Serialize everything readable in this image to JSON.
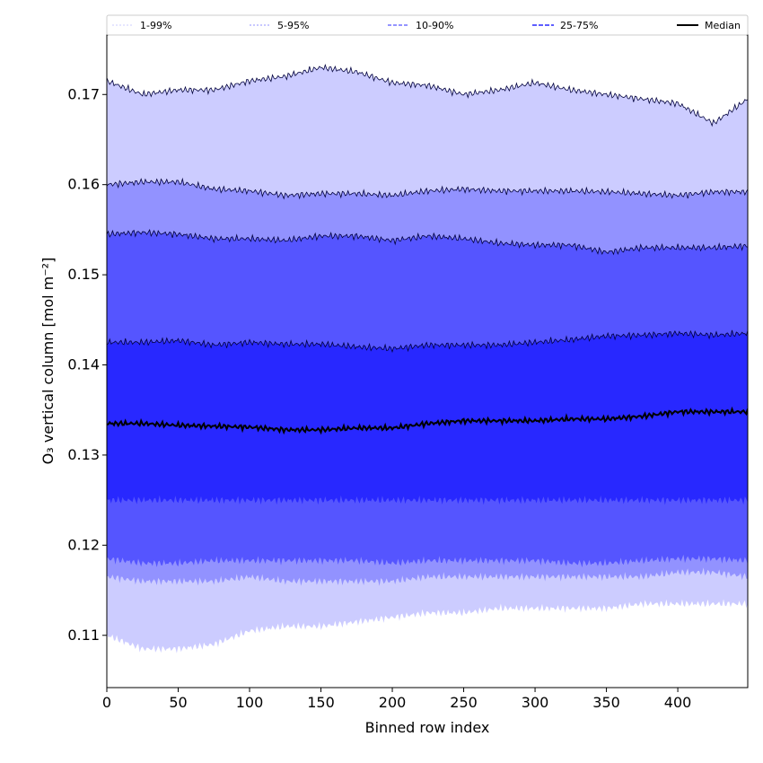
{
  "chart_data": {
    "type": "area",
    "xlabel": "Binned row index",
    "ylabel": "O₃ vertical column [mol m⁻²]",
    "xlim": [
      0,
      449
    ],
    "ylim": [
      0.1042,
      0.1766
    ],
    "x_ticks": [
      "0",
      "50",
      "100",
      "150",
      "200",
      "250",
      "300",
      "350",
      "400"
    ],
    "y_ticks": [
      "0.11",
      "0.12",
      "0.13",
      "0.14",
      "0.15",
      "0.16",
      "0.17"
    ],
    "legend": {
      "placement": "top",
      "entries": [
        "1-99%",
        "5-95%",
        "10-90%",
        "25-75%",
        "Median"
      ]
    },
    "colors": {
      "band_1_99": "#ccccff",
      "band_5_95": "#9292ff",
      "band_10_90": "#5555ff",
      "band_25_75": "#2828ff",
      "outline": "#00003c",
      "median": "#000000"
    },
    "x": [
      0,
      25,
      50,
      75,
      100,
      125,
      150,
      175,
      200,
      225,
      250,
      275,
      300,
      325,
      350,
      375,
      400,
      425,
      449
    ],
    "series": [
      {
        "name": "1-99%",
        "type": "band",
        "lower": [
          0.11,
          0.1085,
          0.1085,
          0.109,
          0.1105,
          0.111,
          0.111,
          0.1115,
          0.112,
          0.1125,
          0.1125,
          0.113,
          0.113,
          0.113,
          0.113,
          0.1135,
          0.1135,
          0.1135,
          0.1135
        ],
        "upper": [
          0.1715,
          0.17,
          0.1705,
          0.1705,
          0.1715,
          0.172,
          0.173,
          0.1725,
          0.1713,
          0.171,
          0.17,
          0.1705,
          0.1713,
          0.1705,
          0.17,
          0.1695,
          0.169,
          0.1668,
          0.1695
        ]
      },
      {
        "name": "5-95%",
        "type": "band",
        "lower": [
          0.1165,
          0.116,
          0.116,
          0.116,
          0.1165,
          0.116,
          0.116,
          0.116,
          0.116,
          0.1165,
          0.1165,
          0.1165,
          0.1165,
          0.1165,
          0.1165,
          0.1165,
          0.117,
          0.117,
          0.1165
        ],
        "upper": [
          0.16,
          0.1603,
          0.1603,
          0.1595,
          0.1593,
          0.1588,
          0.159,
          0.159,
          0.1588,
          0.1593,
          0.1595,
          0.1593,
          0.1593,
          0.1593,
          0.1592,
          0.159,
          0.1588,
          0.1592,
          0.1592
        ]
      },
      {
        "name": "10-90%",
        "type": "band",
        "lower": [
          0.1185,
          0.118,
          0.118,
          0.1183,
          0.1183,
          0.1183,
          0.1183,
          0.1183,
          0.118,
          0.1183,
          0.1183,
          0.1183,
          0.1183,
          0.118,
          0.118,
          0.1183,
          0.1185,
          0.1185,
          0.1183
        ],
        "upper": [
          0.1545,
          0.1547,
          0.1545,
          0.154,
          0.154,
          0.1538,
          0.1543,
          0.1543,
          0.1538,
          0.1543,
          0.154,
          0.1535,
          0.1533,
          0.1533,
          0.1525,
          0.153,
          0.153,
          0.153,
          0.1532
        ]
      },
      {
        "name": "25-75%",
        "type": "band",
        "lower": [
          0.125,
          0.125,
          0.125,
          0.125,
          0.125,
          0.125,
          0.125,
          0.125,
          0.125,
          0.125,
          0.125,
          0.125,
          0.125,
          0.125,
          0.125,
          0.125,
          0.125,
          0.125,
          0.125
        ],
        "upper": [
          0.1425,
          0.1425,
          0.1427,
          0.1422,
          0.1425,
          0.1423,
          0.1423,
          0.142,
          0.1418,
          0.1422,
          0.1422,
          0.1422,
          0.1425,
          0.1428,
          0.1432,
          0.1433,
          0.1435,
          0.1433,
          0.1435
        ]
      },
      {
        "name": "Median",
        "type": "line",
        "values": [
          0.1335,
          0.1335,
          0.1333,
          0.1332,
          0.1331,
          0.1328,
          0.1328,
          0.133,
          0.133,
          0.1335,
          0.1338,
          0.1338,
          0.1338,
          0.134,
          0.134,
          0.1343,
          0.1348,
          0.1348,
          0.1348
        ]
      }
    ]
  }
}
